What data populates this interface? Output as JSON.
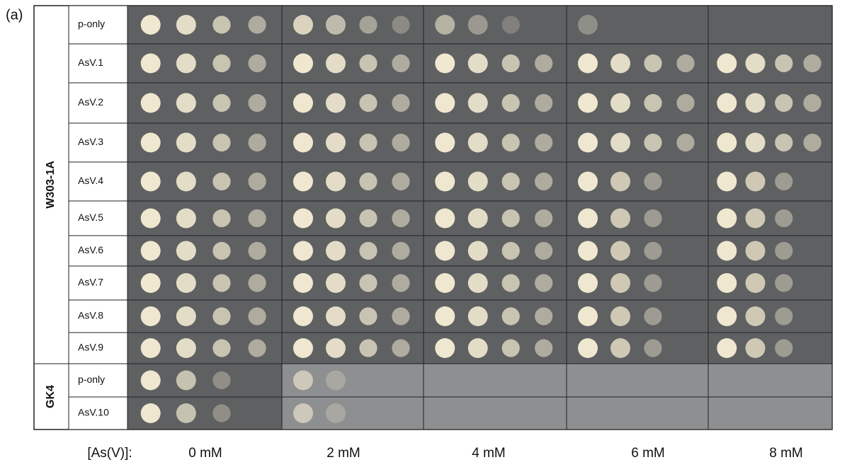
{
  "panel_label": "(a)",
  "groups": [
    {
      "label": "W303-1A",
      "rows": [
        "p-only",
        "AsV.1",
        "AsV.2",
        "AsV.3",
        "AsV.4",
        "AsV.5",
        "AsV.6",
        "AsV.7",
        "AsV.8",
        "AsV.9"
      ]
    },
    {
      "label": "GK4",
      "rows": [
        "p-only",
        "AsV.10"
      ]
    }
  ],
  "axis_label": "[As(V)]:",
  "concentrations": [
    "0 mM",
    "2 mM",
    "4 mM",
    "6 mM",
    "8 mM"
  ]
}
